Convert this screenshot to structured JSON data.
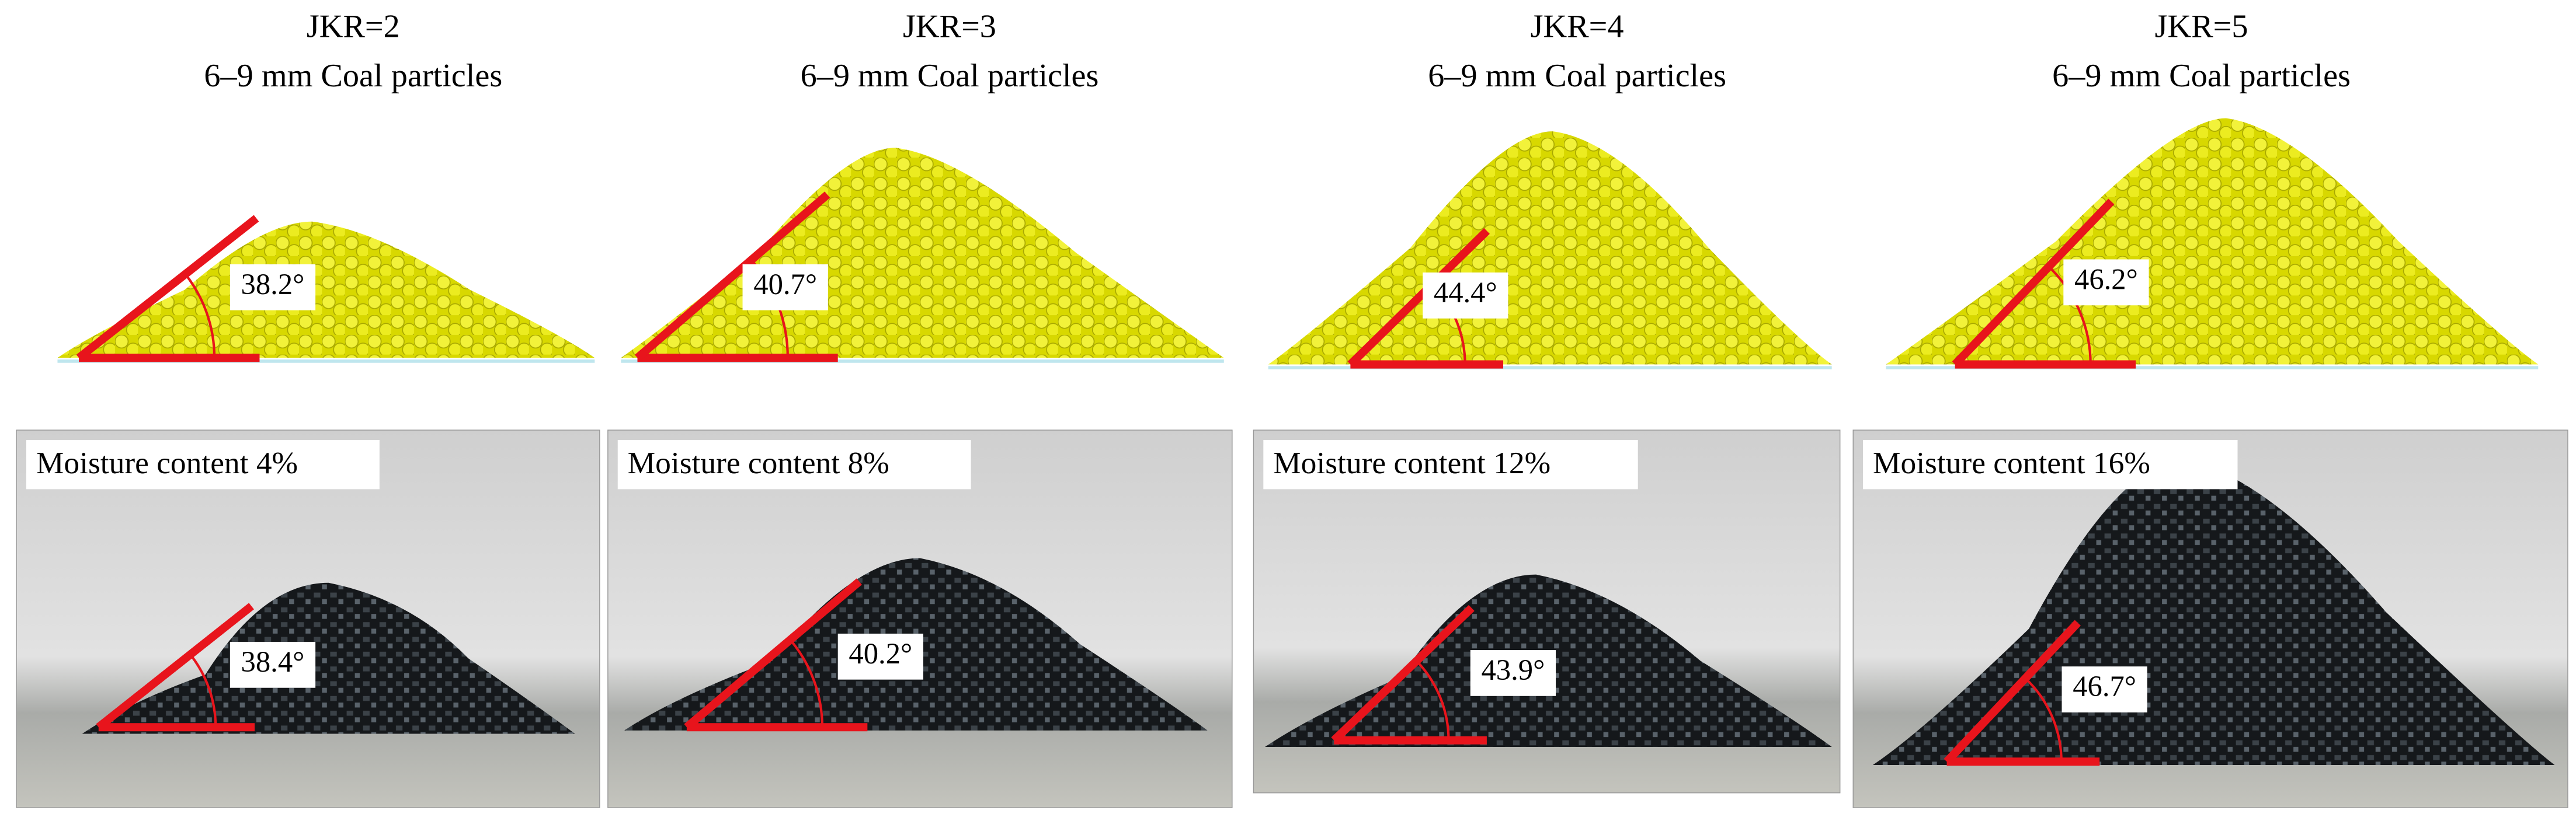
{
  "panels": [
    {
      "jkr": "JKR=2",
      "particles": "6–9 mm Coal particles",
      "simulation_angle": "38.2°",
      "moisture": "Moisture content 4%",
      "experiment_angle": "38.4°"
    },
    {
      "jkr": "JKR=3",
      "particles": "6–9 mm Coal particles",
      "simulation_angle": "40.7°",
      "moisture": "Moisture content 8%",
      "experiment_angle": "40.2°"
    },
    {
      "jkr": "JKR=4",
      "particles": "6–9 mm Coal particles",
      "simulation_angle": "44.4°",
      "moisture": "Moisture content 12%",
      "experiment_angle": "43.9°"
    },
    {
      "jkr": "JKR=5",
      "particles": "6–9 mm Coal particles",
      "simulation_angle": "46.2°",
      "moisture": "Moisture content 16%",
      "experiment_angle": "46.7°"
    }
  ]
}
